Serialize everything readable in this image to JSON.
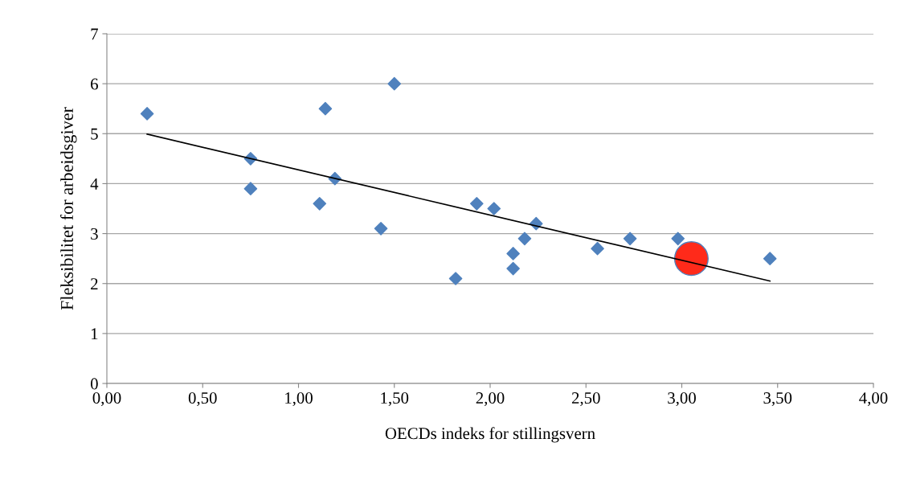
{
  "chart_data": {
    "type": "scatter",
    "xlabel": "OECDs indeks for stillingsvern",
    "ylabel": "Fleksibilitet for arbeidsgiver",
    "series": [
      {
        "color": "#4f81bd",
        "marker": "diamond",
        "x": [
          0.21,
          0.75,
          0.75,
          1.14,
          1.11,
          1.19,
          1.5,
          1.43,
          1.82,
          1.93,
          2.02,
          2.18,
          2.12,
          2.12,
          2.24,
          2.56,
          2.73,
          2.98,
          3.46
        ],
        "values": [
          5.4,
          4.5,
          3.9,
          5.5,
          3.6,
          4.1,
          6.0,
          3.1,
          2.1,
          3.6,
          3.5,
          2.9,
          2.6,
          2.3,
          3.2,
          2.7,
          2.9,
          2.9,
          2.5
        ]
      },
      {
        "color": "#ff2a1a",
        "marker": "circle",
        "x": [
          3.05
        ],
        "values": [
          2.5
        ]
      },
      {
        "type": "line",
        "color": "#000000",
        "marker": "none",
        "x": [
          0.21,
          3.46
        ],
        "values": [
          4.99,
          2.05
        ]
      }
    ],
    "xlim": [
      0,
      4
    ],
    "ylim": [
      0,
      7
    ],
    "xticks": [
      {
        "value": 0,
        "label": "0,00"
      },
      {
        "value": 0.5,
        "label": "0,50"
      },
      {
        "value": 1,
        "label": "1,00"
      },
      {
        "value": 1.5,
        "label": "1,50"
      },
      {
        "value": 2,
        "label": "2,00"
      },
      {
        "value": 2.5,
        "label": "2,50"
      },
      {
        "value": 3,
        "label": "3,00"
      },
      {
        "value": 3.5,
        "label": "3,50"
      },
      {
        "value": 4,
        "label": "4,00"
      }
    ],
    "yticks": [
      0,
      1,
      2,
      3,
      4,
      5,
      6,
      7
    ],
    "grid": "y",
    "legend": false
  }
}
